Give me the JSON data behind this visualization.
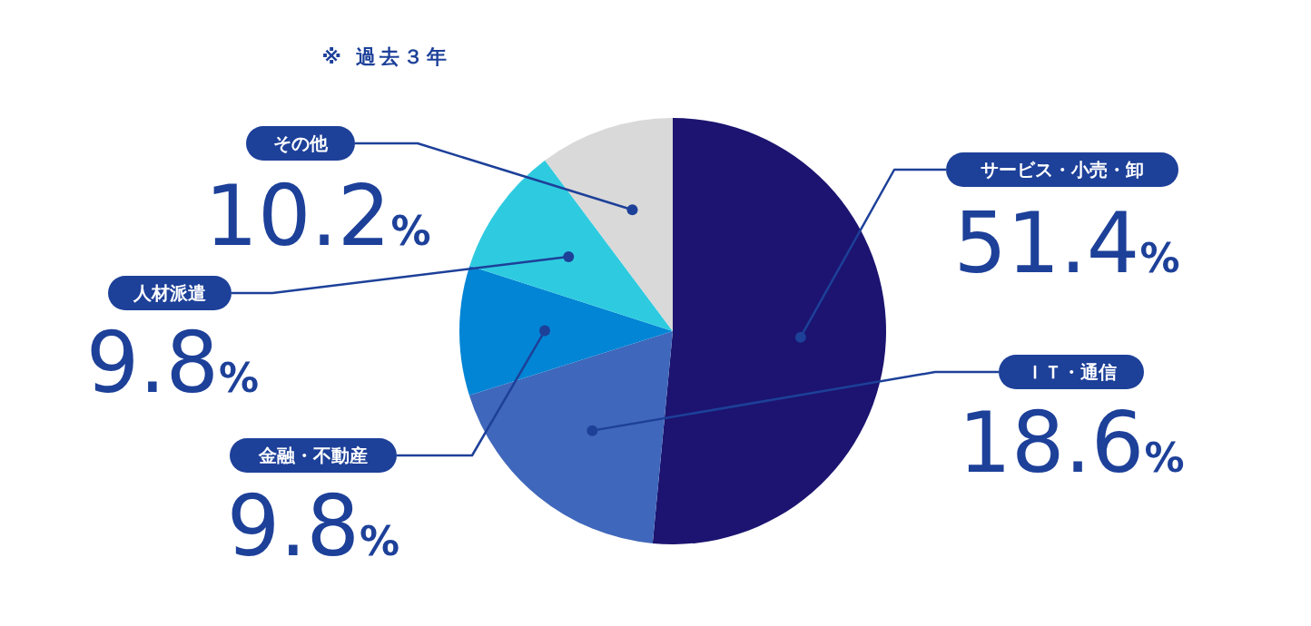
{
  "chart_data": {
    "type": "pie",
    "title": "※ 過去３年",
    "categories": [
      "サービス・小売・卸",
      "ＩＴ・通信",
      "金融・不動産",
      "人材派遣",
      "その他"
    ],
    "values": [
      51.4,
      18.6,
      9.8,
      9.8,
      10.2
    ],
    "colors": [
      "#1c1470",
      "#3f67bb",
      "#0385d5",
      "#2ecbe0",
      "#d9d9d9"
    ],
    "value_labels": [
      "51.4%",
      "18.6%",
      "9.8%",
      "9.8%",
      "10.2%"
    ],
    "legend": false
  }
}
